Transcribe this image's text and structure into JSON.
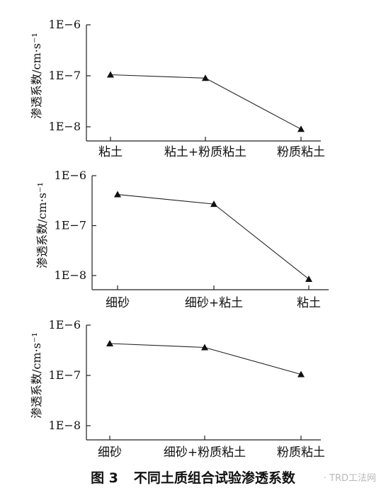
{
  "chart_data": [
    {
      "type": "line",
      "ylabel": "渗透系数/cm·s⁻¹",
      "yscale": "log",
      "ylim": [
        1e-08,
        1e-06
      ],
      "yticks": [
        "1E−6",
        "1E−7",
        "1E−8"
      ],
      "categories": [
        "粘土",
        "粘土+粉质粘土",
        "粉质粘土"
      ],
      "values": [
        1.05e-07,
        9e-08,
        9e-09
      ],
      "marker": "triangle"
    },
    {
      "type": "line",
      "ylabel": "渗透系数/cm·s⁻¹",
      "yscale": "log",
      "ylim": [
        1e-08,
        1e-06
      ],
      "yticks": [
        "1E−6",
        "1E−7",
        "1E−8"
      ],
      "categories": [
        "细砂",
        "细砂+粘土",
        "粘土"
      ],
      "values": [
        4.2e-07,
        2.7e-07,
        8.5e-09
      ],
      "marker": "triangle"
    },
    {
      "type": "line",
      "ylabel": "渗透系数/cm·s⁻¹",
      "yscale": "log",
      "ylim": [
        1e-08,
        1e-06
      ],
      "yticks": [
        "1E−6",
        "1E−7",
        "1E−8"
      ],
      "categories": [
        "细砂",
        "细砂+粉质粘土",
        "粉质粘土"
      ],
      "values": [
        4.3e-07,
        3.6e-07,
        1.05e-07
      ],
      "marker": "triangle"
    }
  ],
  "caption": {
    "number": "图 3",
    "text": "不同土质组合试验渗透系数"
  },
  "watermark": "· TRD工法网"
}
